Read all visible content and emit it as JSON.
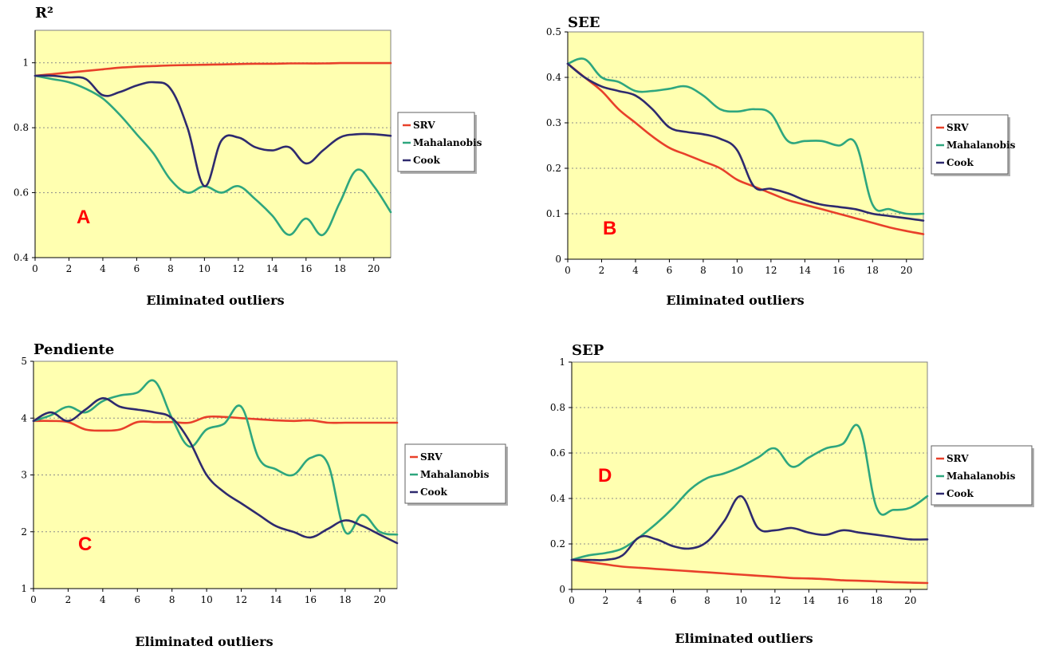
{
  "colors": {
    "SRV": "#e8402a",
    "Mahalanobis": "#2ea67e",
    "Cook": "#2e2a6e",
    "plot_bg": "#ffffb0",
    "panel_letter": "#ff0000"
  },
  "chart_data": [
    {
      "type": "line",
      "panel_letter": "A",
      "title": "R²",
      "xlabel": "Eliminated outliers",
      "ylabel": "",
      "xlim": [
        0,
        21
      ],
      "ylim": [
        0.4,
        1.1
      ],
      "xticks": [
        0,
        2,
        4,
        6,
        8,
        10,
        12,
        14,
        16,
        18,
        20
      ],
      "xtick_labels": [
        "0",
        "2",
        "4",
        "6",
        "8",
        "10",
        "12",
        "14",
        "16",
        "18",
        "20"
      ],
      "yticks": [
        0.4,
        0.6,
        0.8,
        1.0
      ],
      "ytick_labels": [
        "0.4",
        "0.6",
        "0.8",
        "1"
      ],
      "grid": true,
      "legend_position": "right",
      "x": [
        0,
        1,
        2,
        3,
        4,
        5,
        6,
        7,
        8,
        9,
        10,
        11,
        12,
        13,
        14,
        15,
        16,
        17,
        18,
        19,
        20,
        21
      ],
      "series": [
        {
          "name": "SRV",
          "values": [
            0.96,
            0.965,
            0.97,
            0.975,
            0.98,
            0.985,
            0.988,
            0.99,
            0.992,
            0.993,
            0.994,
            0.995,
            0.996,
            0.997,
            0.997,
            0.998,
            0.998,
            0.998,
            0.999,
            0.999,
            0.999,
            0.999
          ]
        },
        {
          "name": "Mahalanobis",
          "values": [
            0.96,
            0.95,
            0.94,
            0.92,
            0.89,
            0.84,
            0.78,
            0.72,
            0.64,
            0.6,
            0.62,
            0.6,
            0.62,
            0.58,
            0.53,
            0.47,
            0.52,
            0.47,
            0.57,
            0.67,
            0.62,
            0.54
          ]
        },
        {
          "name": "Cook",
          "values": [
            0.96,
            0.96,
            0.955,
            0.95,
            0.9,
            0.91,
            0.93,
            0.94,
            0.92,
            0.8,
            0.62,
            0.76,
            0.77,
            0.74,
            0.73,
            0.74,
            0.69,
            0.73,
            0.77,
            0.78,
            0.78,
            0.775
          ]
        }
      ]
    },
    {
      "type": "line",
      "panel_letter": "B",
      "title": "SEE",
      "xlabel": "Eliminated outliers",
      "ylabel": "",
      "xlim": [
        0,
        21
      ],
      "ylim": [
        0,
        0.5
      ],
      "xticks": [
        0,
        2,
        4,
        6,
        8,
        10,
        12,
        14,
        16,
        18,
        20
      ],
      "xtick_labels": [
        "0",
        "2",
        "4",
        "6",
        "8",
        "10",
        "12",
        "14",
        "16",
        "18",
        "20"
      ],
      "yticks": [
        0,
        0.1,
        0.2,
        0.3,
        0.4,
        0.5
      ],
      "ytick_labels": [
        "0",
        "0.1",
        "0.2",
        "0.3",
        "0.4",
        "0.5"
      ],
      "grid": true,
      "legend_position": "right",
      "x": [
        0,
        1,
        2,
        3,
        4,
        5,
        6,
        7,
        8,
        9,
        10,
        11,
        12,
        13,
        14,
        15,
        16,
        17,
        18,
        19,
        20,
        21
      ],
      "series": [
        {
          "name": "SRV",
          "values": [
            0.43,
            0.4,
            0.37,
            0.33,
            0.3,
            0.27,
            0.245,
            0.23,
            0.215,
            0.2,
            0.175,
            0.16,
            0.145,
            0.13,
            0.12,
            0.11,
            0.1,
            0.09,
            0.08,
            0.07,
            0.062,
            0.055
          ]
        },
        {
          "name": "Mahalanobis",
          "values": [
            0.43,
            0.44,
            0.4,
            0.39,
            0.37,
            0.37,
            0.375,
            0.38,
            0.36,
            0.33,
            0.325,
            0.33,
            0.32,
            0.26,
            0.26,
            0.26,
            0.25,
            0.255,
            0.12,
            0.11,
            0.1,
            0.1
          ]
        },
        {
          "name": "Cook",
          "values": [
            0.43,
            0.4,
            0.38,
            0.37,
            0.36,
            0.33,
            0.29,
            0.28,
            0.275,
            0.265,
            0.24,
            0.16,
            0.155,
            0.145,
            0.13,
            0.12,
            0.115,
            0.11,
            0.1,
            0.095,
            0.09,
            0.085
          ]
        }
      ]
    },
    {
      "type": "line",
      "panel_letter": "C",
      "title": "Pendiente",
      "xlabel": "Eliminated outliers",
      "ylabel": "",
      "xlim": [
        0,
        21
      ],
      "ylim": [
        1,
        5
      ],
      "xticks": [
        0,
        2,
        4,
        6,
        8,
        10,
        12,
        14,
        16,
        18,
        20
      ],
      "xtick_labels": [
        "0",
        "2",
        "4",
        "6",
        "8",
        "10",
        "12",
        "14",
        "16",
        "18",
        "20"
      ],
      "yticks": [
        1,
        2,
        3,
        4,
        5
      ],
      "ytick_labels": [
        "1",
        "2",
        "3",
        "4",
        "5"
      ],
      "grid": true,
      "legend_position": "right",
      "x": [
        0,
        1,
        2,
        3,
        4,
        5,
        6,
        7,
        8,
        9,
        10,
        11,
        12,
        13,
        14,
        15,
        16,
        17,
        18,
        19,
        20,
        21
      ],
      "series": [
        {
          "name": "SRV",
          "values": [
            3.95,
            3.95,
            3.93,
            3.8,
            3.78,
            3.8,
            3.93,
            3.93,
            3.93,
            3.92,
            4.02,
            4.02,
            4.0,
            3.98,
            3.96,
            3.95,
            3.96,
            3.92,
            3.92,
            3.92,
            3.92,
            3.92
          ]
        },
        {
          "name": "Mahalanobis",
          "values": [
            3.95,
            4.05,
            4.2,
            4.1,
            4.3,
            4.4,
            4.45,
            4.65,
            4.0,
            3.5,
            3.8,
            3.9,
            4.2,
            3.3,
            3.1,
            3.0,
            3.3,
            3.2,
            2.0,
            2.3,
            2.0,
            1.95
          ]
        },
        {
          "name": "Cook",
          "values": [
            3.95,
            4.1,
            3.95,
            4.15,
            4.35,
            4.2,
            4.15,
            4.1,
            4.0,
            3.6,
            3.0,
            2.7,
            2.5,
            2.3,
            2.1,
            2.0,
            1.9,
            2.05,
            2.2,
            2.1,
            1.95,
            1.8
          ]
        }
      ]
    },
    {
      "type": "line",
      "panel_letter": "D",
      "title": "SEP",
      "xlabel": "Eliminated outliers",
      "ylabel": "",
      "xlim": [
        0,
        21
      ],
      "ylim": [
        0,
        1
      ],
      "xticks": [
        0,
        2,
        4,
        6,
        8,
        10,
        12,
        14,
        16,
        18,
        20
      ],
      "xtick_labels": [
        "0",
        "2",
        "4",
        "6",
        "8",
        "10",
        "12",
        "14",
        "16",
        "18",
        "20"
      ],
      "yticks": [
        0,
        0.2,
        0.4,
        0.6,
        0.8,
        1.0
      ],
      "ytick_labels": [
        "0",
        "0.2",
        "0.4",
        "0.6",
        "0.8",
        "1"
      ],
      "grid": true,
      "legend_position": "right",
      "x": [
        0,
        1,
        2,
        3,
        4,
        5,
        6,
        7,
        8,
        9,
        10,
        11,
        12,
        13,
        14,
        15,
        16,
        17,
        18,
        19,
        20,
        21
      ],
      "series": [
        {
          "name": "SRV",
          "values": [
            0.13,
            0.12,
            0.11,
            0.1,
            0.095,
            0.09,
            0.085,
            0.08,
            0.075,
            0.07,
            0.065,
            0.06,
            0.055,
            0.05,
            0.048,
            0.045,
            0.04,
            0.038,
            0.035,
            0.032,
            0.03,
            0.028
          ]
        },
        {
          "name": "Mahalanobis",
          "values": [
            0.13,
            0.15,
            0.16,
            0.18,
            0.23,
            0.29,
            0.36,
            0.44,
            0.49,
            0.51,
            0.54,
            0.58,
            0.62,
            0.54,
            0.58,
            0.62,
            0.64,
            0.71,
            0.36,
            0.35,
            0.36,
            0.41
          ]
        },
        {
          "name": "Cook",
          "values": [
            0.13,
            0.13,
            0.13,
            0.15,
            0.23,
            0.22,
            0.19,
            0.18,
            0.21,
            0.3,
            0.41,
            0.27,
            0.26,
            0.27,
            0.25,
            0.24,
            0.26,
            0.25,
            0.24,
            0.23,
            0.22,
            0.22
          ]
        }
      ]
    }
  ]
}
